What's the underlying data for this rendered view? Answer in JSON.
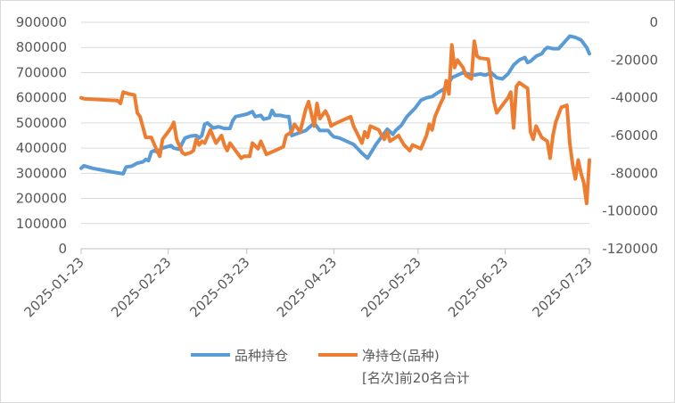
{
  "chart_data": {
    "type": "line",
    "title": "",
    "xlabel": "",
    "ylabel": "",
    "x_ticks": [
      "2025-01-23",
      "2025-02-23",
      "2025-03-23",
      "2025-04-23",
      "2025-05-23",
      "2025-06-23",
      "2025-07-23"
    ],
    "x_range": [
      "2025-01-23",
      "2025-07-23"
    ],
    "y_left": {
      "range": [
        0,
        900000
      ],
      "ticks": [
        "0",
        "100000",
        "200000",
        "300000",
        "400000",
        "500000",
        "600000",
        "700000",
        "800000",
        "900000"
      ]
    },
    "y_right": {
      "range": [
        -120000,
        0
      ],
      "ticks": [
        "0",
        "-20000",
        "-40000",
        "-60000",
        "-80000",
        "-100000",
        "-120000"
      ]
    },
    "grid": "horizontal",
    "legend": "bottom",
    "series": [
      {
        "name": "品种持仓",
        "axis": "left",
        "color": "#5b9bd5",
        "points": [
          [
            "2025-01-23",
            320000
          ],
          [
            "2025-01-24",
            330000
          ],
          [
            "2025-01-27",
            320000
          ],
          [
            "2025-02-03",
            305000
          ],
          [
            "2025-02-07",
            298000
          ],
          [
            "2025-02-08",
            325000
          ],
          [
            "2025-02-10",
            328000
          ],
          [
            "2025-02-12",
            340000
          ],
          [
            "2025-02-14",
            345000
          ],
          [
            "2025-02-15",
            355000
          ],
          [
            "2025-02-16",
            350000
          ],
          [
            "2025-02-17",
            385000
          ],
          [
            "2025-02-18",
            390000
          ],
          [
            "2025-02-19",
            385000
          ],
          [
            "2025-02-21",
            400000
          ],
          [
            "2025-02-24",
            410000
          ],
          [
            "2025-02-25",
            400000
          ],
          [
            "2025-02-27",
            395000
          ],
          [
            "2025-02-28",
            420000
          ],
          [
            "2025-03-01",
            440000
          ],
          [
            "2025-03-03",
            448000
          ],
          [
            "2025-03-05",
            450000
          ],
          [
            "2025-03-06",
            440000
          ],
          [
            "2025-03-07",
            450000
          ],
          [
            "2025-03-08",
            495000
          ],
          [
            "2025-03-09",
            500000
          ],
          [
            "2025-03-11",
            480000
          ],
          [
            "2025-03-13",
            485000
          ],
          [
            "2025-03-15",
            478000
          ],
          [
            "2025-03-17",
            478000
          ],
          [
            "2025-03-18",
            510000
          ],
          [
            "2025-03-19",
            525000
          ],
          [
            "2025-03-21",
            530000
          ],
          [
            "2025-03-23",
            535000
          ],
          [
            "2025-03-25",
            545000
          ],
          [
            "2025-03-26",
            525000
          ],
          [
            "2025-03-28",
            530000
          ],
          [
            "2025-03-29",
            515000
          ],
          [
            "2025-03-31",
            520000
          ],
          [
            "2025-04-01",
            550000
          ],
          [
            "2025-04-02",
            530000
          ],
          [
            "2025-04-04",
            530000
          ],
          [
            "2025-04-06",
            525000
          ],
          [
            "2025-04-07",
            525000
          ],
          [
            "2025-04-08",
            450000
          ],
          [
            "2025-04-13",
            470000
          ],
          [
            "2025-04-16",
            500000
          ],
          [
            "2025-04-18",
            470000
          ],
          [
            "2025-04-21",
            470000
          ],
          [
            "2025-04-22",
            455000
          ],
          [
            "2025-04-23",
            445000
          ],
          [
            "2025-04-25",
            440000
          ],
          [
            "2025-04-28",
            425000
          ],
          [
            "2025-04-30",
            415000
          ],
          [
            "2025-05-03",
            380000
          ],
          [
            "2025-05-05",
            360000
          ],
          [
            "2025-05-08",
            415000
          ],
          [
            "2025-05-10",
            445000
          ],
          [
            "2025-05-12",
            475000
          ],
          [
            "2025-05-14",
            455000
          ],
          [
            "2025-05-15",
            470000
          ],
          [
            "2025-05-17",
            490000
          ],
          [
            "2025-05-19",
            525000
          ],
          [
            "2025-05-22",
            560000
          ],
          [
            "2025-05-24",
            590000
          ],
          [
            "2025-05-26",
            600000
          ],
          [
            "2025-05-28",
            605000
          ],
          [
            "2025-05-30",
            620000
          ],
          [
            "2025-06-02",
            640000
          ],
          [
            "2025-06-04",
            680000
          ],
          [
            "2025-06-06",
            690000
          ],
          [
            "2025-06-08",
            700000
          ],
          [
            "2025-06-10",
            695000
          ],
          [
            "2025-06-12",
            690000
          ],
          [
            "2025-06-14",
            695000
          ],
          [
            "2025-06-16",
            690000
          ],
          [
            "2025-06-18",
            700000
          ],
          [
            "2025-06-20",
            680000
          ],
          [
            "2025-06-22",
            675000
          ],
          [
            "2025-06-24",
            695000
          ],
          [
            "2025-06-26",
            730000
          ],
          [
            "2025-06-28",
            750000
          ],
          [
            "2025-06-30",
            760000
          ],
          [
            "2025-07-01",
            740000
          ],
          [
            "2025-07-02",
            745000
          ],
          [
            "2025-07-04",
            765000
          ],
          [
            "2025-07-06",
            775000
          ],
          [
            "2025-07-07",
            790000
          ],
          [
            "2025-07-08",
            800000
          ],
          [
            "2025-07-10",
            795000
          ],
          [
            "2025-07-12",
            795000
          ],
          [
            "2025-07-14",
            820000
          ],
          [
            "2025-07-16",
            845000
          ],
          [
            "2025-07-18",
            840000
          ],
          [
            "2025-07-20",
            830000
          ],
          [
            "2025-07-22",
            800000
          ],
          [
            "2025-07-23",
            775000
          ]
        ]
      },
      {
        "name": "净持仓(品种)[名次]前20名合计",
        "axis": "right",
        "color": "#ed7d31",
        "points": [
          [
            "2025-01-23",
            -40000
          ],
          [
            "2025-01-24",
            -40500
          ],
          [
            "2025-02-05",
            -41500
          ],
          [
            "2025-02-06",
            -43000
          ],
          [
            "2025-02-07",
            -37000
          ],
          [
            "2025-02-09",
            -38000
          ],
          [
            "2025-02-11",
            -38500
          ],
          [
            "2025-02-12",
            -48000
          ],
          [
            "2025-02-13",
            -50000
          ],
          [
            "2025-02-15",
            -61000
          ],
          [
            "2025-02-16",
            -61000
          ],
          [
            "2025-02-17",
            -61000
          ],
          [
            "2025-02-19",
            -68000
          ],
          [
            "2025-02-20",
            -71000
          ],
          [
            "2025-02-21",
            -62000
          ],
          [
            "2025-02-24",
            -56000
          ],
          [
            "2025-02-25",
            -53000
          ],
          [
            "2025-02-26",
            -62000
          ],
          [
            "2025-02-28",
            -69000
          ],
          [
            "2025-03-01",
            -70000
          ],
          [
            "2025-03-03",
            -69000
          ],
          [
            "2025-03-04",
            -68000
          ],
          [
            "2025-03-05",
            -62000
          ],
          [
            "2025-03-06",
            -65000
          ],
          [
            "2025-03-07",
            -63000
          ],
          [
            "2025-03-08",
            -64000
          ],
          [
            "2025-03-10",
            -57000
          ],
          [
            "2025-03-12",
            -64000
          ],
          [
            "2025-03-14",
            -60000
          ],
          [
            "2025-03-15",
            -65000
          ],
          [
            "2025-03-16",
            -68000
          ],
          [
            "2025-03-17",
            -64000
          ],
          [
            "2025-03-19",
            -68000
          ],
          [
            "2025-03-21",
            -72000
          ],
          [
            "2025-03-22",
            -71000
          ],
          [
            "2025-03-24",
            -71000
          ],
          [
            "2025-03-25",
            -64000
          ],
          [
            "2025-03-27",
            -67000
          ],
          [
            "2025-03-28",
            -63000
          ],
          [
            "2025-03-30",
            -70000
          ],
          [
            "2025-04-05",
            -66000
          ],
          [
            "2025-04-06",
            -60000
          ],
          [
            "2025-04-08",
            -58000
          ],
          [
            "2025-04-09",
            -54000
          ],
          [
            "2025-04-11",
            -58000
          ],
          [
            "2025-04-13",
            -46000
          ],
          [
            "2025-04-14",
            -42000
          ],
          [
            "2025-04-16",
            -55000
          ],
          [
            "2025-04-17",
            -43000
          ],
          [
            "2025-04-18",
            -51000
          ],
          [
            "2025-04-20",
            -47000
          ],
          [
            "2025-04-21",
            -50000
          ],
          [
            "2025-04-22",
            -55000
          ],
          [
            "2025-04-23",
            -54000
          ],
          [
            "2025-04-29",
            -50000
          ],
          [
            "2025-04-30",
            -55000
          ],
          [
            "2025-05-03",
            -64000
          ],
          [
            "2025-05-04",
            -58000
          ],
          [
            "2025-05-05",
            -61000
          ],
          [
            "2025-05-06",
            -55000
          ],
          [
            "2025-05-09",
            -57000
          ],
          [
            "2025-05-10",
            -60000
          ],
          [
            "2025-05-11",
            -62000
          ],
          [
            "2025-05-12",
            -58000
          ],
          [
            "2025-05-13",
            -63000
          ],
          [
            "2025-05-16",
            -60000
          ],
          [
            "2025-05-18",
            -65000
          ],
          [
            "2025-05-20",
            -68000
          ],
          [
            "2025-05-21",
            -65000
          ],
          [
            "2025-05-24",
            -67000
          ],
          [
            "2025-05-26",
            -60000
          ],
          [
            "2025-05-27",
            -54000
          ],
          [
            "2025-05-28",
            -57000
          ],
          [
            "2025-05-29",
            -50000
          ],
          [
            "2025-05-31",
            -43000
          ],
          [
            "2025-06-01",
            -40000
          ],
          [
            "2025-06-02",
            -31000
          ],
          [
            "2025-06-03",
            -38000
          ],
          [
            "2025-06-04",
            -12000
          ],
          [
            "2025-06-05",
            -24000
          ],
          [
            "2025-06-06",
            -20000
          ],
          [
            "2025-06-08",
            -24000
          ],
          [
            "2025-06-09",
            -28000
          ],
          [
            "2025-06-11",
            -30000
          ],
          [
            "2025-06-12",
            -10000
          ],
          [
            "2025-06-13",
            -18000
          ],
          [
            "2025-06-14",
            -19000
          ],
          [
            "2025-06-17",
            -19500
          ],
          [
            "2025-06-19",
            -42000
          ],
          [
            "2025-06-20",
            -48000
          ],
          [
            "2025-06-22",
            -44000
          ],
          [
            "2025-06-24",
            -40000
          ],
          [
            "2025-06-25",
            -37000
          ],
          [
            "2025-06-26",
            -56000
          ],
          [
            "2025-06-27",
            -34000
          ],
          [
            "2025-06-28",
            -32000
          ],
          [
            "2025-07-01",
            -35000
          ],
          [
            "2025-07-02",
            -58000
          ],
          [
            "2025-07-03",
            -62000
          ],
          [
            "2025-07-04",
            -55000
          ],
          [
            "2025-07-06",
            -61000
          ],
          [
            "2025-07-08",
            -63000
          ],
          [
            "2025-07-09",
            -72000
          ],
          [
            "2025-07-10",
            -60000
          ],
          [
            "2025-07-11",
            -53000
          ],
          [
            "2025-07-13",
            -45000
          ],
          [
            "2025-07-15",
            -44000
          ],
          [
            "2025-07-16",
            -64000
          ],
          [
            "2025-07-17",
            -75000
          ],
          [
            "2025-07-18",
            -83000
          ],
          [
            "2025-07-19",
            -73000
          ],
          [
            "2025-07-20",
            -80000
          ],
          [
            "2025-07-21",
            -85000
          ],
          [
            "2025-07-22",
            -96000
          ],
          [
            "2025-07-23",
            -73000
          ]
        ]
      }
    ]
  },
  "legend": {
    "items": [
      {
        "label": "品种持仓",
        "color": "#5b9bd5"
      },
      {
        "label_line1": "净持仓(品种)",
        "label_line2": "[名次]前20名合计",
        "color": "#ed7d31"
      }
    ]
  }
}
